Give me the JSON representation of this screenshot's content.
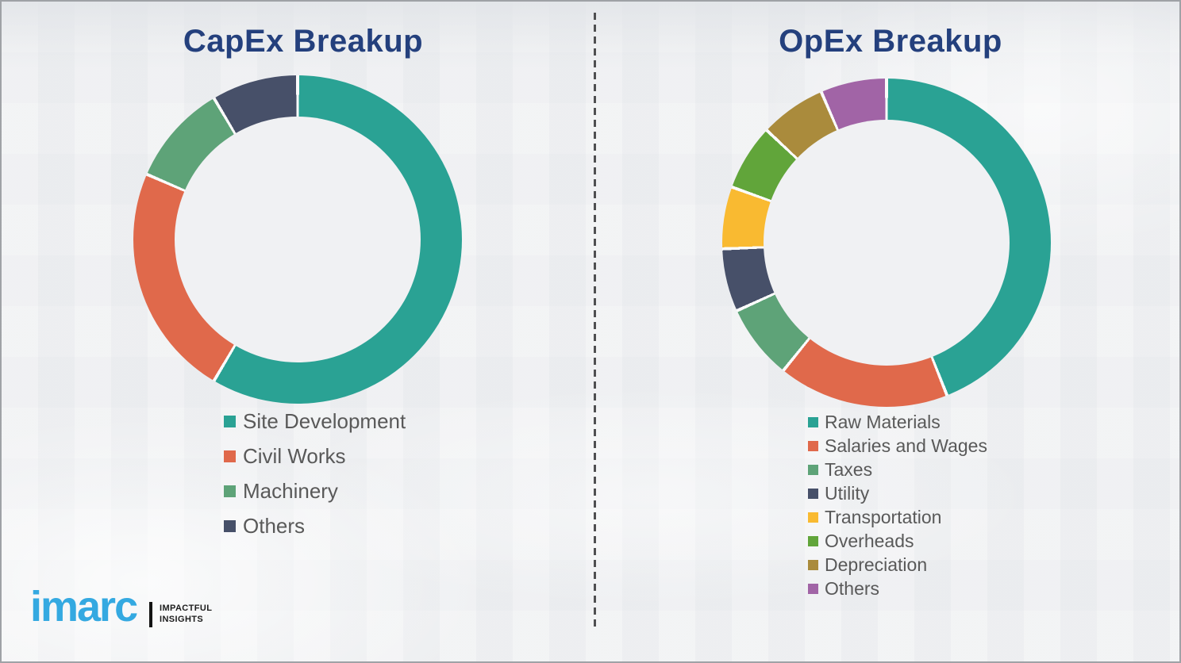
{
  "page": {
    "background_color": "#eff0f2",
    "border_color": "#9fa2a6",
    "title_color": "#24407d",
    "legend_text_color": "#595959",
    "divider_style": "vertical-dashed"
  },
  "branding": {
    "logo_text": "imarc",
    "logo_color": "#34a9e1",
    "tagline_line1": "IMPACTFUL",
    "tagline_line2": "INSIGHTS"
  },
  "chart_data": [
    {
      "type": "pie",
      "variant": "donut",
      "title": "CapEx Breakup",
      "unit": "%",
      "start_angle_deg": 0,
      "direction": "clockwise",
      "donut_hole_ratio": 0.75,
      "legend_position": "below-left",
      "segments": [
        {
          "label": "Site Development",
          "value": 58.5,
          "color": "#2aa294"
        },
        {
          "label": "Civil Works",
          "value": 23.0,
          "color": "#e0694b"
        },
        {
          "label": "Machinery",
          "value": 10.0,
          "color": "#5ea378"
        },
        {
          "label": "Others",
          "value": 8.5,
          "color": "#475069"
        }
      ]
    },
    {
      "type": "pie",
      "variant": "donut",
      "title": "OpEx Breakup",
      "unit": "%",
      "start_angle_deg": 0,
      "direction": "clockwise",
      "donut_hole_ratio": 0.75,
      "legend_position": "below-left",
      "segments": [
        {
          "label": "Raw Materials",
          "value": 44.0,
          "color": "#2aa294"
        },
        {
          "label": "Salaries and Wages",
          "value": 16.8,
          "color": "#e0694b"
        },
        {
          "label": "Taxes",
          "value": 7.4,
          "color": "#5ea378"
        },
        {
          "label": "Utility",
          "value": 6.2,
          "color": "#475069"
        },
        {
          "label": "Transportation",
          "value": 6.1,
          "color": "#f9ba31"
        },
        {
          "label": "Overheads",
          "value": 6.5,
          "color": "#61a53a"
        },
        {
          "label": "Depreciation",
          "value": 6.5,
          "color": "#aa8b3c"
        },
        {
          "label": "Others",
          "value": 6.5,
          "color": "#a164a6"
        }
      ]
    }
  ]
}
